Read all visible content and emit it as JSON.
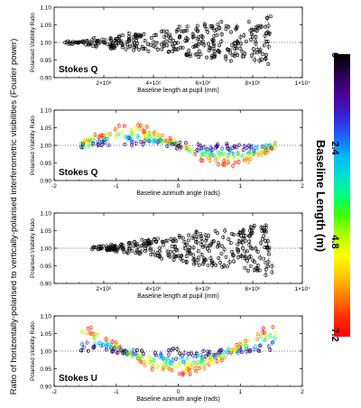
{
  "figure": {
    "ylabel": "Ratio of horizontally-polarised to vertically-polarised interferometric visibilities (Fourier power)"
  },
  "colorbar": {
    "title": "Baseline Length (m)",
    "ticks": [
      "0",
      "2.4",
      "4.8",
      "7.2"
    ],
    "range": [
      0,
      7.2
    ],
    "colormap": [
      "#000000",
      "#2a0050",
      "#4b0096",
      "#3a1fd0",
      "#1f5cff",
      "#00b4ff",
      "#00e0d0",
      "#00ff80",
      "#40ff00",
      "#b4ff00",
      "#ffff00",
      "#ffc800",
      "#ff8000",
      "#ff3000",
      "#ff0000"
    ]
  },
  "chart_data": [
    {
      "type": "scatter",
      "panel_label": "Stokes Q",
      "xlabel": "Baseline length at pupil (mm)",
      "ylabel": "Polarised Visibility Ratio",
      "xlim": [
        0,
        10000000
      ],
      "ylim": [
        0.9,
        1.1
      ],
      "xticks": [
        {
          "v": 2000000,
          "t": "2×10⁶"
        },
        {
          "v": 4000000,
          "t": "4×10⁶"
        },
        {
          "v": 6000000,
          "t": "6×10⁶"
        },
        {
          "v": 8000000,
          "t": "8×10⁶"
        },
        {
          "v": 10000000,
          "t": "1×10⁷"
        }
      ],
      "yticks": [
        "0.90",
        "0.95",
        "1.00",
        "1.05",
        "1.10"
      ],
      "reference_line": 1.0,
      "color": "#000000",
      "envelope": {
        "x_start": 400000,
        "x_end": 8800000,
        "lower": [
          1.0,
          0.93
        ],
        "upper": [
          1.0,
          1.08
        ]
      },
      "n_points": 320
    },
    {
      "type": "scatter",
      "panel_label": "Stokes Q",
      "xlabel": "Baseline azimuth angle (rads)",
      "ylabel": "Polarised Visibility Ratio",
      "xlim": [
        -2,
        2
      ],
      "ylim": [
        0.9,
        1.1
      ],
      "xticks": [
        {
          "v": -2,
          "t": "-2"
        },
        {
          "v": -1,
          "t": "-1"
        },
        {
          "v": 0,
          "t": "0"
        },
        {
          "v": 1,
          "t": "1"
        },
        {
          "v": 2,
          "t": "2"
        }
      ],
      "yticks": [
        "0.90",
        "0.95",
        "1.00",
        "1.05",
        "1.10"
      ],
      "reference_line": 1.0,
      "model": "sine",
      "x_range": [
        -1.57,
        1.57
      ],
      "amplitude_at_max_baseline": 0.055,
      "n_points": 260
    },
    {
      "type": "scatter",
      "panel_label": "",
      "xlabel": "Baseline length at pupil (mm)",
      "ylabel": "Polarised Visibility Ratio",
      "xlim": [
        0,
        10000000
      ],
      "ylim": [
        0.9,
        1.1
      ],
      "xticks": [
        {
          "v": 2000000,
          "t": "2×10⁶"
        },
        {
          "v": 4000000,
          "t": "4×10⁶"
        },
        {
          "v": 6000000,
          "t": "6×10⁶"
        },
        {
          "v": 8000000,
          "t": "8×10⁶"
        },
        {
          "v": 10000000,
          "t": "1×10⁷"
        }
      ],
      "yticks": [
        "0.90",
        "0.95",
        "1.00",
        "1.05",
        "1.10"
      ],
      "reference_line": 1.0,
      "color": "#000000",
      "envelope": {
        "x_start": 1500000,
        "x_end": 8800000,
        "lower": [
          1.0,
          0.915
        ],
        "upper": [
          1.0,
          1.08
        ]
      },
      "n_points": 320
    },
    {
      "type": "scatter",
      "panel_label": "Stokes U",
      "xlabel": "Baseline azimuth angle (rads)",
      "ylabel": "Polarised Visibility Ratio",
      "xlim": [
        -2,
        2
      ],
      "ylim": [
        0.9,
        1.1
      ],
      "xticks": [
        {
          "v": -2,
          "t": "-2"
        },
        {
          "v": -1,
          "t": "-1"
        },
        {
          "v": 0,
          "t": "0"
        },
        {
          "v": 1,
          "t": "1"
        },
        {
          "v": 2,
          "t": "2"
        }
      ],
      "yticks": [
        "0.90",
        "0.95",
        "1.00",
        "1.05",
        "1.10"
      ],
      "reference_line": 1.0,
      "model": "cos2",
      "x_range": [
        -1.57,
        1.57
      ],
      "amplitude_at_max_baseline": 0.075,
      "n_points": 260
    }
  ]
}
